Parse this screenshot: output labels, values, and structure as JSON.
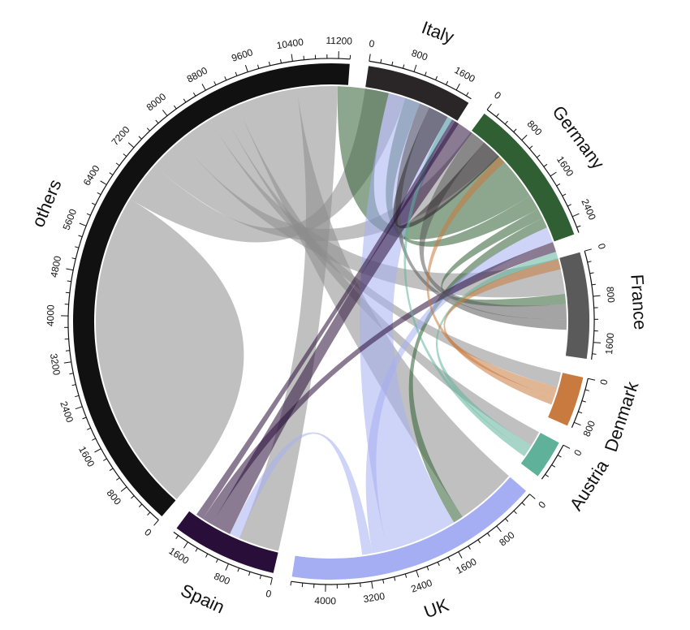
{
  "chart_data": {
    "type": "chord",
    "title": "",
    "sectors": [
      {
        "name": "others",
        "total": 11400,
        "color": "#111111",
        "ticks": [
          "0",
          "800",
          "1600",
          "2400",
          "3200",
          "4000",
          "4800",
          "5600",
          "6400",
          "7200",
          "8000",
          "8800",
          "9600",
          "10400",
          "11200"
        ]
      },
      {
        "name": "Italy",
        "total": 1900,
        "color": "#2a2527",
        "ticks": [
          "0",
          "800",
          "1600"
        ]
      },
      {
        "name": "Germany",
        "total": 2700,
        "color": "#2f5f33",
        "ticks": [
          "0",
          "800",
          "1600",
          "2400"
        ]
      },
      {
        "name": "France",
        "total": 1900,
        "color": "#5a5a5a",
        "ticks": [
          "0",
          "800",
          "1600"
        ]
      },
      {
        "name": "Denmark",
        "total": 900,
        "color": "#c97a3e",
        "ticks": [
          "0",
          "800"
        ]
      },
      {
        "name": "Austria",
        "total": 700,
        "color": "#5fb299",
        "ticks": [
          "0"
        ]
      },
      {
        "name": "UK",
        "total": 4600,
        "color": "#a5aef2",
        "ticks": [
          "0",
          "800",
          "1600",
          "2400",
          "3200",
          "4000"
        ]
      },
      {
        "name": "Spain",
        "total": 1900,
        "color": "#2a0e3a",
        "ticks": [
          "0",
          "800",
          "1600"
        ]
      }
    ],
    "flows": [
      {
        "from": "others",
        "to": "others",
        "value": 3200
      },
      {
        "from": "others",
        "to": "Italy",
        "value": 800
      },
      {
        "from": "others",
        "to": "Germany",
        "value": 700
      },
      {
        "from": "others",
        "to": "France",
        "value": 700
      },
      {
        "from": "others",
        "to": "Denmark",
        "value": 300
      },
      {
        "from": "others",
        "to": "Austria",
        "value": 300
      },
      {
        "from": "others",
        "to": "UK",
        "value": 1200
      },
      {
        "from": "others",
        "to": "Spain",
        "value": 800
      },
      {
        "from": "Germany",
        "to": "others",
        "value": 1000
      },
      {
        "from": "Germany",
        "to": "Italy",
        "value": 300
      },
      {
        "from": "Germany",
        "to": "France",
        "value": 200
      },
      {
        "from": "Germany",
        "to": "UK",
        "value": 200
      },
      {
        "from": "UK",
        "to": "others",
        "value": 1400
      },
      {
        "from": "UK",
        "to": "Germany",
        "value": 300
      },
      {
        "from": "UK",
        "to": "Spain",
        "value": 200
      },
      {
        "from": "Spain",
        "to": "others",
        "value": 400
      },
      {
        "from": "Spain",
        "to": "Germany",
        "value": 200
      },
      {
        "from": "France",
        "to": "others",
        "value": 300
      },
      {
        "from": "France",
        "to": "Italy",
        "value": 200
      },
      {
        "from": "Italy",
        "to": "others",
        "value": 400
      },
      {
        "from": "Austria",
        "to": "Germany",
        "value": 150
      },
      {
        "from": "Austria",
        "to": "Italy",
        "value": 100
      },
      {
        "from": "Denmark",
        "to": "Germany",
        "value": 200
      },
      {
        "from": "Denmark",
        "to": "others",
        "value": 150
      },
      {
        "from": "Spain",
        "to": "Italy",
        "value": 150
      }
    ]
  }
}
